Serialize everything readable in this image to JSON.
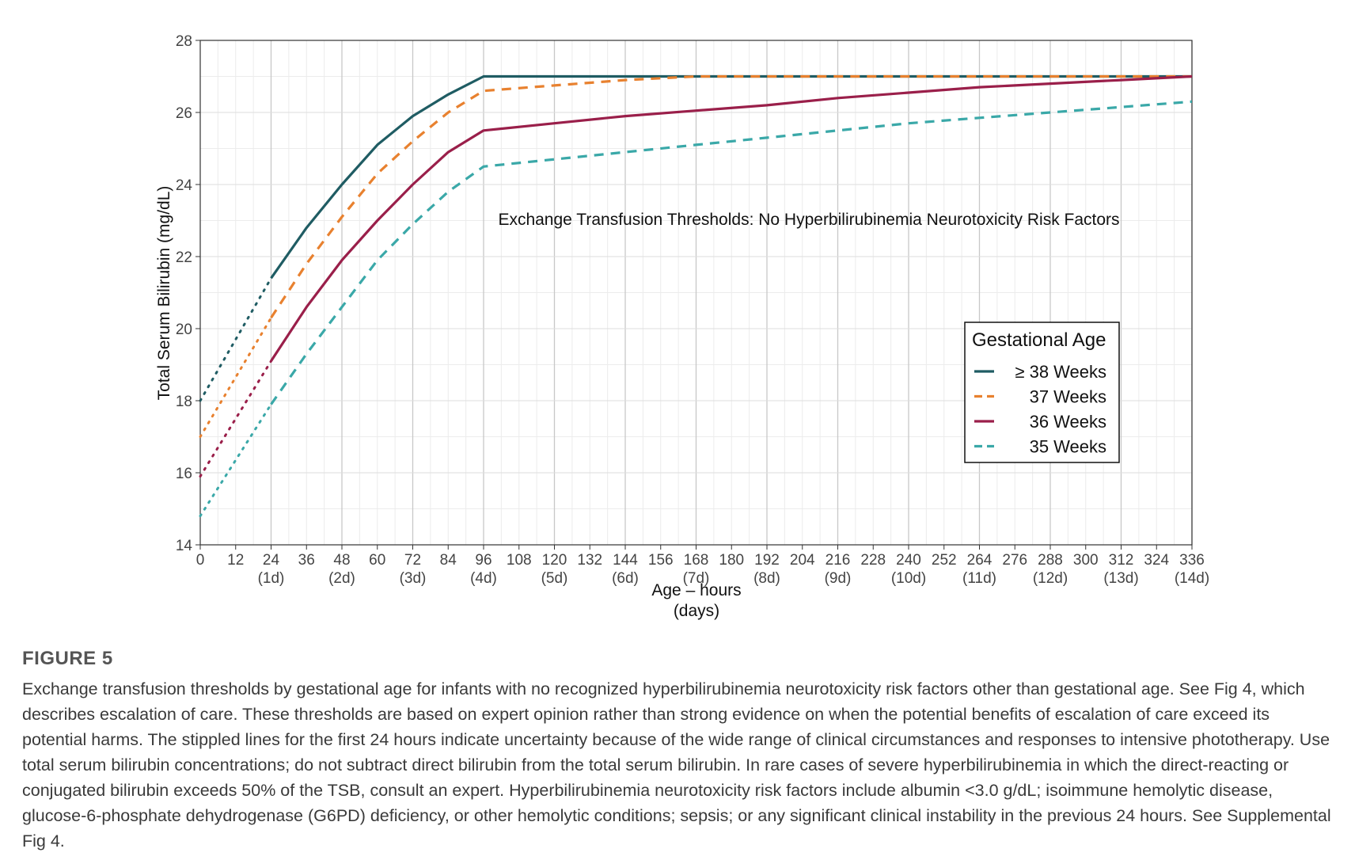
{
  "chart_data": {
    "type": "line",
    "title": "Exchange Transfusion Thresholds: No Hyperbilirubinemia Neurotoxicity Risk Factors",
    "xlabel": "Age – hours",
    "xlabel_sub": "(days)",
    "ylabel": "Total Serum Bilirubin (mg/dL)",
    "xlim": [
      0,
      336
    ],
    "ylim": [
      14,
      28
    ],
    "x_ticks": [
      0,
      12,
      24,
      36,
      48,
      60,
      72,
      84,
      96,
      108,
      120,
      132,
      144,
      156,
      168,
      180,
      192,
      204,
      216,
      228,
      240,
      252,
      264,
      276,
      288,
      300,
      312,
      324,
      336
    ],
    "x_day_ticks": [
      {
        "x": 24,
        "label": "(1d)"
      },
      {
        "x": 48,
        "label": "(2d)"
      },
      {
        "x": 72,
        "label": "(3d)"
      },
      {
        "x": 96,
        "label": "(4d)"
      },
      {
        "x": 120,
        "label": "(5d)"
      },
      {
        "x": 144,
        "label": "(6d)"
      },
      {
        "x": 168,
        "label": "(7d)"
      },
      {
        "x": 192,
        "label": "(8d)"
      },
      {
        "x": 216,
        "label": "(9d)"
      },
      {
        "x": 240,
        "label": "(10d)"
      },
      {
        "x": 264,
        "label": "(11d)"
      },
      {
        "x": 288,
        "label": "(12d)"
      },
      {
        "x": 312,
        "label": "(13d)"
      },
      {
        "x": 336,
        "label": "(14d)"
      }
    ],
    "y_ticks": [
      14,
      16,
      18,
      20,
      22,
      24,
      26,
      28
    ],
    "grid": true,
    "legend": {
      "title": "Gestational Age",
      "position": "right"
    },
    "series": [
      {
        "name": "≥ 38 Weeks",
        "color": "#1f5c63",
        "style": "solid",
        "uncertain_x": [
          0,
          24
        ],
        "uncertain_y": [
          18.0,
          21.4
        ],
        "x": [
          24,
          36,
          48,
          60,
          72,
          84,
          96,
          120,
          144,
          168,
          192,
          216,
          240,
          264,
          288,
          312,
          336
        ],
        "y": [
          21.4,
          22.8,
          24.0,
          25.1,
          25.9,
          26.5,
          27.0,
          27.0,
          27.0,
          27.0,
          27.0,
          27.0,
          27.0,
          27.0,
          27.0,
          27.0,
          27.0
        ]
      },
      {
        "name": "37 Weeks",
        "color": "#e8812f",
        "style": "dashed",
        "uncertain_x": [
          0,
          24
        ],
        "uncertain_y": [
          17.0,
          20.3
        ],
        "x": [
          24,
          36,
          48,
          60,
          72,
          84,
          96,
          120,
          144,
          168,
          192,
          216,
          240,
          264,
          288,
          312,
          336
        ],
        "y": [
          20.3,
          21.8,
          23.1,
          24.3,
          25.2,
          26.0,
          26.6,
          26.75,
          26.9,
          27.0,
          27.0,
          27.0,
          27.0,
          27.0,
          27.0,
          27.0,
          27.0
        ]
      },
      {
        "name": "36 Weeks",
        "color": "#9a1f4a",
        "style": "solid",
        "uncertain_x": [
          0,
          24
        ],
        "uncertain_y": [
          15.9,
          19.1
        ],
        "x": [
          24,
          36,
          48,
          60,
          72,
          84,
          96,
          120,
          144,
          168,
          192,
          216,
          240,
          264,
          288,
          312,
          336
        ],
        "y": [
          19.1,
          20.6,
          21.9,
          23.0,
          24.0,
          24.9,
          25.5,
          25.7,
          25.9,
          26.05,
          26.2,
          26.4,
          26.55,
          26.7,
          26.8,
          26.9,
          27.0
        ]
      },
      {
        "name": "35 Weeks",
        "color": "#3aa8a8",
        "style": "dashed",
        "uncertain_x": [
          0,
          24
        ],
        "uncertain_y": [
          14.8,
          17.9
        ],
        "x": [
          24,
          36,
          48,
          60,
          72,
          84,
          96,
          120,
          144,
          168,
          192,
          216,
          240,
          264,
          288,
          312,
          336
        ],
        "y": [
          17.9,
          19.3,
          20.6,
          21.9,
          22.9,
          23.8,
          24.5,
          24.7,
          24.9,
          25.1,
          25.3,
          25.5,
          25.7,
          25.85,
          26.0,
          26.15,
          26.3
        ]
      }
    ]
  },
  "caption": {
    "label": "FIGURE 5",
    "text": "Exchange transfusion thresholds by gestational age for infants with no recognized hyperbilirubinemia neurotoxicity risk factors other than gestational age. See Fig 4, which describes escalation of care. These thresholds are based on expert opinion rather than strong evidence on when the potential benefits of escalation of care exceed its potential harms. The stippled lines for the first 24 hours indicate uncertainty because of the wide range of clinical circumstances and responses to intensive phototherapy. Use total serum bilirubin concentrations; do not subtract direct bilirubin from the total serum bilirubin. In rare cases of severe hyperbilirubinemia in which the direct-reacting or conjugated bilirubin exceeds 50% of the TSB, consult an expert. Hyperbilirubinemia neurotoxicity risk factors include albumin <3.0 g/dL; isoimmune hemolytic disease, glucose-6-phosphate dehydrogenase (G6PD) deficiency, or other hemolytic conditions; sepsis; or any significant clinical instability in the previous 24 hours. See Supplemental Fig 4."
  }
}
